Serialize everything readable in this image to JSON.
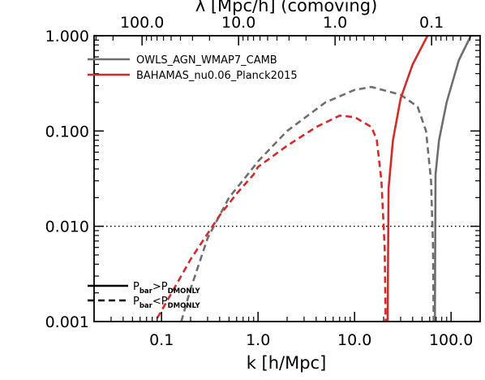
{
  "chart_data": {
    "type": "line",
    "xlabel": "k [h/Mpc]",
    "top_xlabel": "λ [Mpc/h] (comoving)",
    "x_scale": "log",
    "y_scale": "log",
    "xlim": [
      0.02,
      200
    ],
    "ylim": [
      0.001,
      1.0
    ],
    "x_tick_labels": [
      "0.1",
      "1.0",
      "10.0",
      "100.0"
    ],
    "x_tick_values": [
      0.1,
      1,
      10,
      100
    ],
    "top_tick_labels": [
      "100.0",
      "10.0",
      "1.0",
      "0.1"
    ],
    "top_tick_values_lambda": [
      100,
      10,
      1,
      0.1
    ],
    "y_tick_labels": [
      "0.001",
      "0.010",
      "0.100",
      "1.000"
    ],
    "y_tick_values": [
      0.001,
      0.01,
      0.1,
      1.0
    ],
    "reference_line": {
      "y": 0.01,
      "style": "dotted",
      "color": "#000000"
    },
    "legend_position": "top-left",
    "series": [
      {
        "name": "OWLS_AGN_WMAP7_CAMB",
        "color": "#6e6e6e",
        "dashed_points": [
          [
            0.16,
            0.001
          ],
          [
            0.2,
            0.0022
          ],
          [
            0.3,
            0.0075
          ],
          [
            0.5,
            0.02
          ],
          [
            0.8,
            0.036
          ],
          [
            1.0,
            0.048
          ],
          [
            2.0,
            0.1
          ],
          [
            5.0,
            0.2
          ],
          [
            10.0,
            0.27
          ],
          [
            15.0,
            0.29
          ],
          [
            30.0,
            0.24
          ],
          [
            45.0,
            0.18
          ],
          [
            55.0,
            0.1
          ],
          [
            62.0,
            0.03
          ],
          [
            65.0,
            0.006
          ],
          [
            66.0,
            0.001
          ]
        ],
        "solid_points": [
          [
            68.0,
            0.001
          ],
          [
            69.0,
            0.035
          ],
          [
            75.0,
            0.08
          ],
          [
            90.0,
            0.2
          ],
          [
            120.0,
            0.55
          ],
          [
            160.0,
            1.0
          ]
        ]
      },
      {
        "name": "BAHAMAS_nu0.06_Planck2015",
        "color": "#d42a2a",
        "dashed_points": [
          [
            0.07,
            0.0007
          ],
          [
            0.1,
            0.0013
          ],
          [
            0.2,
            0.0045
          ],
          [
            0.4,
            0.013
          ],
          [
            0.6,
            0.022
          ],
          [
            0.9,
            0.035
          ],
          [
            1.0,
            0.042
          ],
          [
            2.0,
            0.07
          ],
          [
            4.0,
            0.11
          ],
          [
            7.0,
            0.145
          ],
          [
            10.0,
            0.14
          ],
          [
            15.0,
            0.11
          ],
          [
            17.0,
            0.08
          ],
          [
            19.0,
            0.03
          ],
          [
            20.5,
            0.006
          ],
          [
            21.0,
            0.001
          ]
        ],
        "solid_points": [
          [
            22.0,
            0.001
          ],
          [
            22.5,
            0.025
          ],
          [
            25.0,
            0.08
          ],
          [
            30.0,
            0.22
          ],
          [
            40.0,
            0.5
          ],
          [
            57.0,
            1.0
          ]
        ]
      }
    ],
    "line_style_legend": [
      {
        "style": "solid",
        "base": "P",
        "sub1": "bar",
        "op": ">",
        "sub2": "DMONLY"
      },
      {
        "style": "dashed",
        "base": "P",
        "sub1": "bar",
        "op": "<",
        "sub2": "DMONLY"
      }
    ]
  }
}
